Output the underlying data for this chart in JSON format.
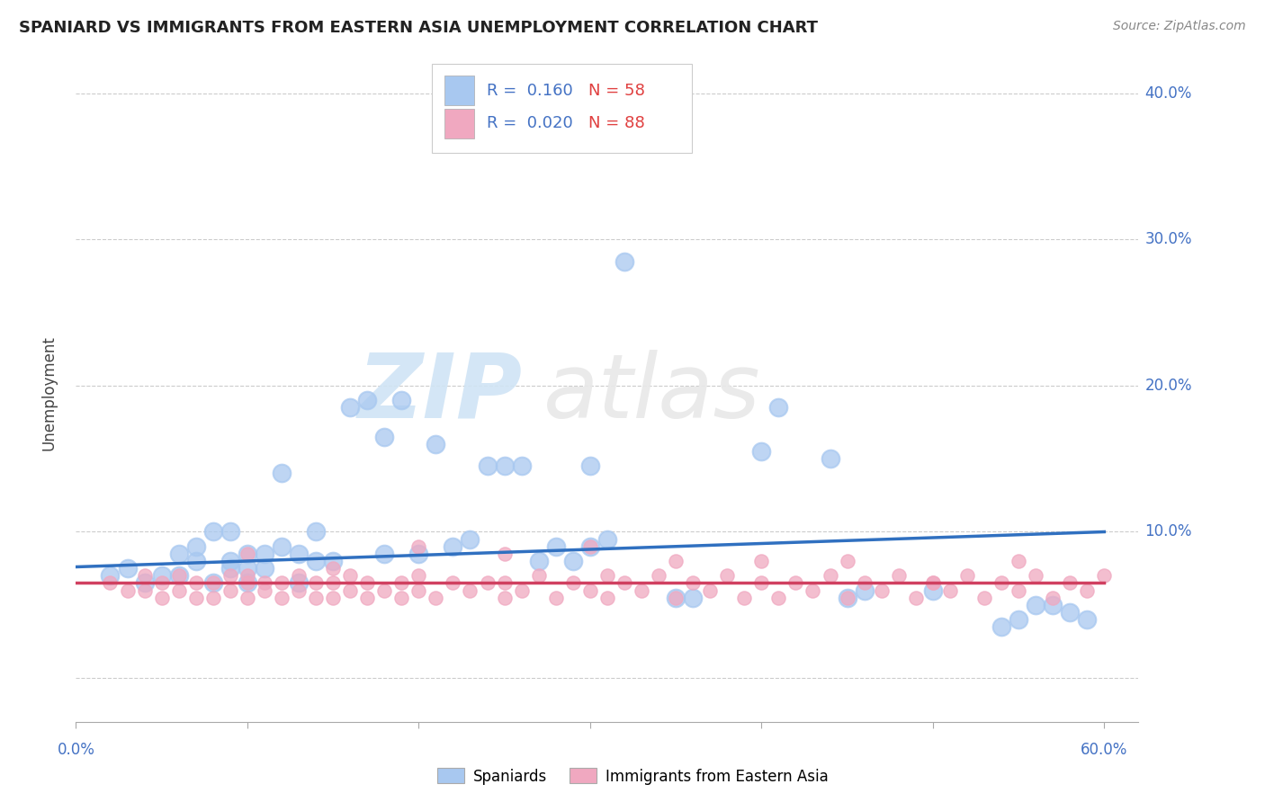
{
  "title": "SPANIARD VS IMMIGRANTS FROM EASTERN ASIA UNEMPLOYMENT CORRELATION CHART",
  "source": "Source: ZipAtlas.com",
  "ylabel": "Unemployment",
  "xlim": [
    0.0,
    0.62
  ],
  "ylim": [
    -0.03,
    0.42
  ],
  "blue_color": "#a8c8f0",
  "pink_color": "#f0a8c0",
  "blue_line_color": "#3070c0",
  "pink_line_color": "#d04060",
  "background_color": "#ffffff",
  "grid_color": "#cccccc",
  "legend_R1": "R =  0.160",
  "legend_N1": "N = 58",
  "legend_R2": "R =  0.020",
  "legend_N2": "N = 88",
  "legend_label1": "Spaniards",
  "legend_label2": "Immigrants from Eastern Asia",
  "text_color_blue": "#4472c4",
  "text_color_pink": "#c0105a",
  "ytick_vals": [
    0.0,
    0.1,
    0.2,
    0.3,
    0.4
  ],
  "ytick_labels": [
    "",
    "10.0%",
    "20.0%",
    "30.0%",
    "40.0%"
  ],
  "blue_scatter_x": [
    0.02,
    0.03,
    0.04,
    0.05,
    0.06,
    0.06,
    0.07,
    0.07,
    0.08,
    0.08,
    0.09,
    0.09,
    0.09,
    0.1,
    0.1,
    0.1,
    0.11,
    0.11,
    0.12,
    0.12,
    0.13,
    0.13,
    0.14,
    0.14,
    0.15,
    0.16,
    0.17,
    0.18,
    0.18,
    0.19,
    0.2,
    0.21,
    0.22,
    0.23,
    0.24,
    0.25,
    0.26,
    0.27,
    0.28,
    0.29,
    0.3,
    0.3,
    0.31,
    0.32,
    0.35,
    0.36,
    0.4,
    0.41,
    0.44,
    0.45,
    0.46,
    0.5,
    0.54,
    0.55,
    0.56,
    0.57,
    0.58,
    0.59
  ],
  "blue_scatter_y": [
    0.07,
    0.075,
    0.065,
    0.07,
    0.07,
    0.085,
    0.08,
    0.09,
    0.065,
    0.1,
    0.075,
    0.08,
    0.1,
    0.065,
    0.075,
    0.085,
    0.075,
    0.085,
    0.09,
    0.14,
    0.065,
    0.085,
    0.08,
    0.1,
    0.08,
    0.185,
    0.19,
    0.165,
    0.085,
    0.19,
    0.085,
    0.16,
    0.09,
    0.095,
    0.145,
    0.145,
    0.145,
    0.08,
    0.09,
    0.08,
    0.09,
    0.145,
    0.095,
    0.285,
    0.055,
    0.055,
    0.155,
    0.185,
    0.15,
    0.055,
    0.06,
    0.06,
    0.035,
    0.04,
    0.05,
    0.05,
    0.045,
    0.04
  ],
  "pink_scatter_x": [
    0.02,
    0.03,
    0.04,
    0.04,
    0.05,
    0.05,
    0.06,
    0.06,
    0.07,
    0.07,
    0.08,
    0.08,
    0.09,
    0.09,
    0.1,
    0.1,
    0.1,
    0.11,
    0.11,
    0.12,
    0.12,
    0.13,
    0.13,
    0.14,
    0.14,
    0.15,
    0.15,
    0.16,
    0.16,
    0.17,
    0.17,
    0.18,
    0.19,
    0.19,
    0.2,
    0.2,
    0.21,
    0.22,
    0.23,
    0.24,
    0.25,
    0.25,
    0.26,
    0.27,
    0.28,
    0.29,
    0.3,
    0.31,
    0.31,
    0.32,
    0.33,
    0.34,
    0.35,
    0.36,
    0.37,
    0.38,
    0.39,
    0.4,
    0.41,
    0.42,
    0.43,
    0.44,
    0.45,
    0.46,
    0.47,
    0.48,
    0.49,
    0.5,
    0.51,
    0.52,
    0.53,
    0.54,
    0.55,
    0.56,
    0.57,
    0.58,
    0.59,
    0.6,
    0.2,
    0.25,
    0.3,
    0.35,
    0.4,
    0.45,
    0.5,
    0.55,
    0.1,
    0.15
  ],
  "pink_scatter_y": [
    0.065,
    0.06,
    0.06,
    0.07,
    0.055,
    0.065,
    0.06,
    0.07,
    0.055,
    0.065,
    0.055,
    0.065,
    0.06,
    0.07,
    0.055,
    0.065,
    0.07,
    0.06,
    0.065,
    0.055,
    0.065,
    0.06,
    0.07,
    0.055,
    0.065,
    0.055,
    0.065,
    0.06,
    0.07,
    0.055,
    0.065,
    0.06,
    0.055,
    0.065,
    0.06,
    0.07,
    0.055,
    0.065,
    0.06,
    0.065,
    0.055,
    0.065,
    0.06,
    0.07,
    0.055,
    0.065,
    0.06,
    0.07,
    0.055,
    0.065,
    0.06,
    0.07,
    0.055,
    0.065,
    0.06,
    0.07,
    0.055,
    0.065,
    0.055,
    0.065,
    0.06,
    0.07,
    0.055,
    0.065,
    0.06,
    0.07,
    0.055,
    0.065,
    0.06,
    0.07,
    0.055,
    0.065,
    0.06,
    0.07,
    0.055,
    0.065,
    0.06,
    0.07,
    0.09,
    0.085,
    0.09,
    0.08,
    0.08,
    0.08,
    0.065,
    0.08,
    0.085,
    0.075
  ],
  "blue_line_x0": 0.0,
  "blue_line_y0": 0.076,
  "blue_line_x1": 0.6,
  "blue_line_y1": 0.1,
  "pink_line_x0": 0.0,
  "pink_line_y0": 0.0655,
  "pink_line_x1": 0.6,
  "pink_line_y1": 0.0655,
  "watermark_zip": "ZIP",
  "watermark_atlas": "atlas"
}
